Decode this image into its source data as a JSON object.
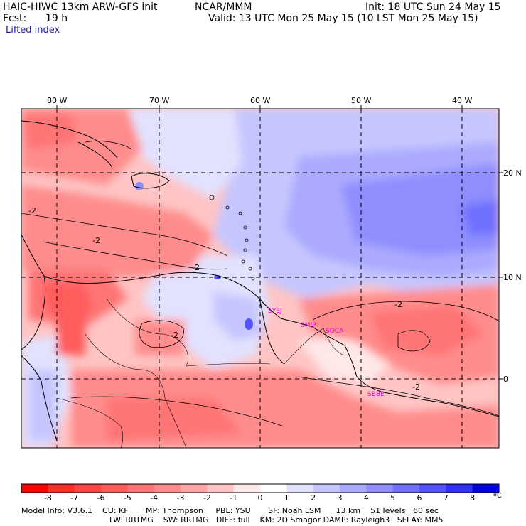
{
  "header": {
    "model": "HAIC-HIWC 13km ARW-GFS init",
    "org": "NCAR/MMM",
    "init": "Init: 18 UTC Sun 24 May 15",
    "fcst_label": "Fcst:",
    "fcst_value": "19 h",
    "valid": "Valid: 13 UTC Mon 25 May 15 (10 LST Mon 25 May 15)",
    "field": "Lifted index"
  },
  "map": {
    "lon_labels": [
      "80 W",
      "70 W",
      "60 W",
      "50 W",
      "40 W"
    ],
    "lat_labels": [
      "20 N",
      "10 N",
      "0"
    ],
    "contour_labels": [
      "-2",
      "-2",
      "-2",
      "-2",
      "-2",
      "-2"
    ],
    "stations": [
      "SYEJ",
      "SMJP",
      "SOCA",
      "SBBE"
    ]
  },
  "colorbar": {
    "ticks": [
      "-8",
      "-7",
      "-6",
      "-5",
      "-4",
      "-3",
      "-2",
      "-1",
      "0",
      "1",
      "2",
      "3",
      "4",
      "5",
      "6",
      "7",
      "8"
    ],
    "unit": "ºC",
    "colors": [
      "#ff0000",
      "#ff2c2c",
      "#ff4646",
      "#ff5c5c",
      "#ff7474",
      "#ff8c8c",
      "#ffa6a6",
      "#ffc4c4",
      "#ffe8e8",
      "#ffffff",
      "#e2e2ff",
      "#c6c6ff",
      "#aaaaff",
      "#8e8eff",
      "#7070ff",
      "#5252ff",
      "#3030ff",
      "#0000e6"
    ]
  },
  "info": {
    "line1": "Model Info: V3.6.1    CU: KF       MP: Thompson     PBL: YSU       SF: Noah LSM      13 km    51 levels   60 sec",
    "line2": "LW: RRTMG    SW: RRTMG   DIFF: full    KM: 2D Smagor DAMP: Rayleigh3   SFLAY: MM5"
  }
}
